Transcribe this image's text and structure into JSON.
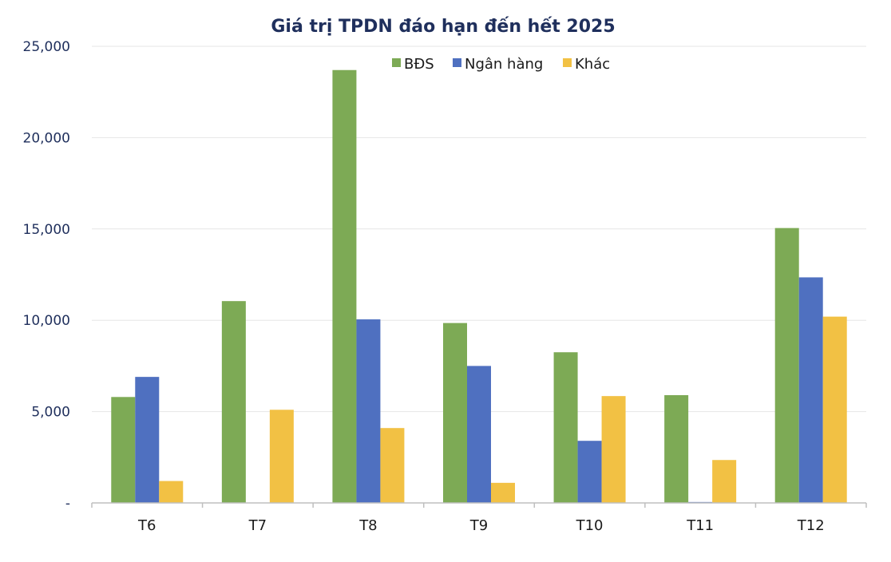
{
  "chart_data": {
    "type": "bar",
    "title": "Giá trị TPDN đáo hạn đến hết 2025",
    "categories": [
      "T6",
      "T7",
      "T8",
      "T9",
      "T10",
      "T11",
      "T12"
    ],
    "series": [
      {
        "name": "BĐS",
        "color": "#7daa55",
        "values": [
          5800,
          11050,
          23700,
          9850,
          8250,
          5900,
          15050
        ]
      },
      {
        "name": "Ngân hàng",
        "color": "#4f70c0",
        "values": [
          6900,
          0,
          10050,
          7500,
          3400,
          50,
          12350
        ]
      },
      {
        "name": "Khác",
        "color": "#f2c144",
        "values": [
          1200,
          5100,
          4100,
          1100,
          5850,
          2350,
          10200
        ]
      }
    ],
    "ylim": [
      0,
      25000
    ],
    "yticks": [
      0,
      5000,
      10000,
      15000,
      20000,
      25000
    ],
    "ytick_labels": [
      "-",
      "5,000",
      "10,000",
      "15,000",
      "20,000",
      "25,000"
    ],
    "grid": true,
    "legend": "top-center",
    "xlabel": "",
    "ylabel": ""
  }
}
